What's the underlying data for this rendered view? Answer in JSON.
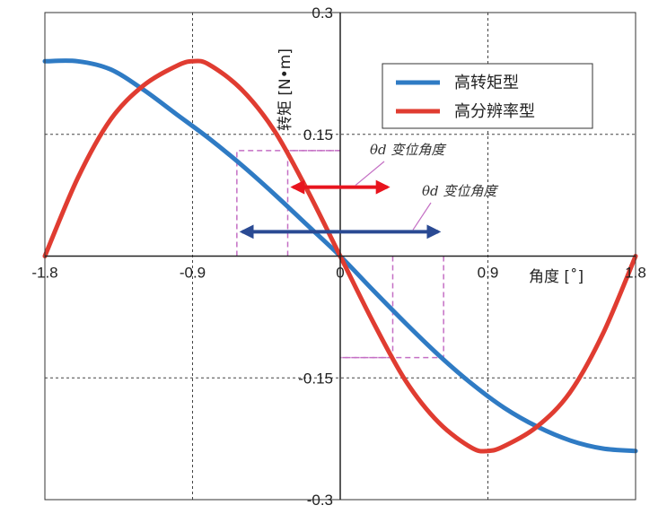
{
  "chart_data": {
    "type": "line",
    "title": "",
    "xlabel": "角度 [˚]",
    "ylabel": "转矩 [N•m]",
    "xlim": [
      -1.8,
      1.8
    ],
    "ylim": [
      -0.3,
      0.3
    ],
    "x_tick_labels": [
      {
        "value": -1.8,
        "label": "-1.8"
      },
      {
        "value": -0.9,
        "label": "-0.9"
      },
      {
        "value": 0,
        "label": "0"
      },
      {
        "value": 0.9,
        "label": "0.9"
      },
      {
        "value": 1.8,
        "label": "1.8"
      }
    ],
    "y_tick_labels": [
      {
        "value": 0.3,
        "label": "0.3"
      },
      {
        "value": 0.15,
        "label": "0.15"
      },
      {
        "value": 0,
        "label": "0"
      },
      {
        "value": -0.15,
        "label": "-0.15"
      },
      {
        "value": -0.3,
        "label": "-0.3"
      }
    ],
    "grid": true,
    "legend_position": "top-right",
    "series": [
      {
        "name": "高转矩型",
        "color": "#2f7bc4",
        "x": [
          -1.8,
          -1.6,
          -1.4,
          -1.2,
          -1.0,
          -0.8,
          -0.6,
          -0.4,
          -0.2,
          0,
          0.2,
          0.4,
          0.6,
          0.8,
          1.0,
          1.2,
          1.4,
          1.6,
          1.8
        ],
        "y": [
          0.24,
          0.24,
          0.23,
          0.205,
          0.175,
          0.145,
          0.112,
          0.076,
          0.038,
          0,
          -0.042,
          -0.083,
          -0.122,
          -0.157,
          -0.187,
          -0.21,
          -0.227,
          -0.237,
          -0.24
        ]
      },
      {
        "name": "高分辨率型",
        "color": "#e03c31",
        "x": [
          -1.8,
          -1.6,
          -1.4,
          -1.2,
          -1.0,
          -0.9,
          -0.8,
          -0.6,
          -0.4,
          -0.2,
          0,
          0.2,
          0.4,
          0.6,
          0.8,
          0.9,
          1.0,
          1.2,
          1.4,
          1.6,
          1.8
        ],
        "y": [
          0,
          0.096,
          0.168,
          0.21,
          0.234,
          0.24,
          0.236,
          0.205,
          0.154,
          0.081,
          0,
          -0.081,
          -0.154,
          -0.205,
          -0.236,
          -0.24,
          -0.234,
          -0.21,
          -0.168,
          -0.096,
          0
        ]
      }
    ],
    "annotations": [
      {
        "label": "θd 变位角度",
        "color": "#e8141e",
        "x_from": -0.32,
        "x_to": 0.32,
        "y": 0.085,
        "box_y_top": 0.13,
        "box_y_bottom": -0.125
      },
      {
        "label": "θd 变位角度",
        "color": "#2a4a93",
        "x_from": -0.63,
        "x_to": 0.63,
        "y": 0.03,
        "box_y_top": 0.13,
        "box_y_bottom": -0.125
      }
    ]
  }
}
